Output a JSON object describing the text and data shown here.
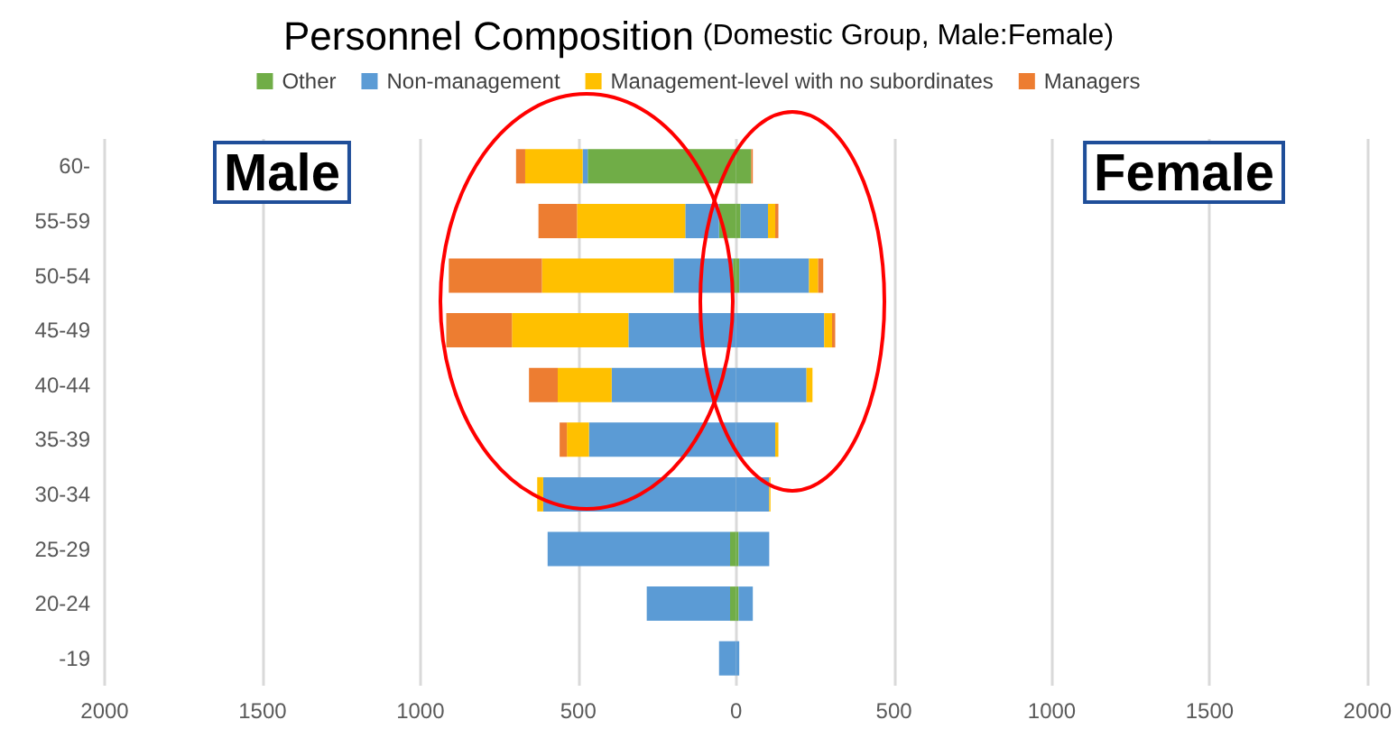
{
  "chart_data": {
    "type": "bar",
    "orientation": "horizontal",
    "stacked": true,
    "title": "Personnel Composition",
    "subtitle": "(Domestic Group, Male:Female)",
    "categories": [
      "60-",
      "55-59",
      "50-54",
      "45-49",
      "40-44",
      "35-39",
      "30-34",
      "25-29",
      "20-24",
      "-19"
    ],
    "series": [
      {
        "name": "Other",
        "color": "#70ad47",
        "values": [
          -470,
          -54,
          -10,
          0,
          0,
          0,
          0,
          -19,
          -19,
          0
        ]
      },
      {
        "name": "Non-management",
        "color": "#5b9bd5",
        "values": [
          -16,
          -107,
          -188,
          -341,
          -394,
          -466,
          -611,
          -578,
          -264,
          -54
        ]
      },
      {
        "name": "Management-level with no subordinates",
        "color": "#ffc000",
        "values": [
          -182,
          -343,
          -417,
          -369,
          -171,
          -70,
          -19,
          0,
          0,
          0
        ]
      },
      {
        "name": "Managers",
        "color": "#ed7d31",
        "values": [
          -29,
          -122,
          -295,
          -208,
          -91,
          -23,
          0,
          0,
          0,
          0
        ]
      },
      {
        "color": "#70ad47",
        "values": [
          48,
          14,
          10,
          0,
          0,
          0,
          0,
          8,
          8,
          0
        ]
      },
      {
        "color": "#5b9bd5",
        "values": [
          0,
          87,
          221,
          279,
          223,
          124,
          105,
          97,
          45,
          10
        ]
      },
      {
        "color": "#ffc000",
        "values": [
          0,
          23,
          29,
          25,
          19,
          10,
          4,
          0,
          0,
          0
        ]
      },
      {
        "color": "#ed7d31",
        "values": [
          5,
          10,
          16,
          10,
          0,
          0,
          0,
          0,
          0,
          0
        ]
      }
    ],
    "xlim": [
      -2000,
      2000
    ],
    "xticks": [
      {
        "value": -2000,
        "label": "2000"
      },
      {
        "value": -1500,
        "label": "1500"
      },
      {
        "value": -1000,
        "label": "1000"
      },
      {
        "value": -500,
        "label": "500"
      },
      0,
      500,
      1000,
      1500,
      2000
    ],
    "annotations": [
      "Male",
      "Female"
    ],
    "grid": "x",
    "legend": "top"
  }
}
